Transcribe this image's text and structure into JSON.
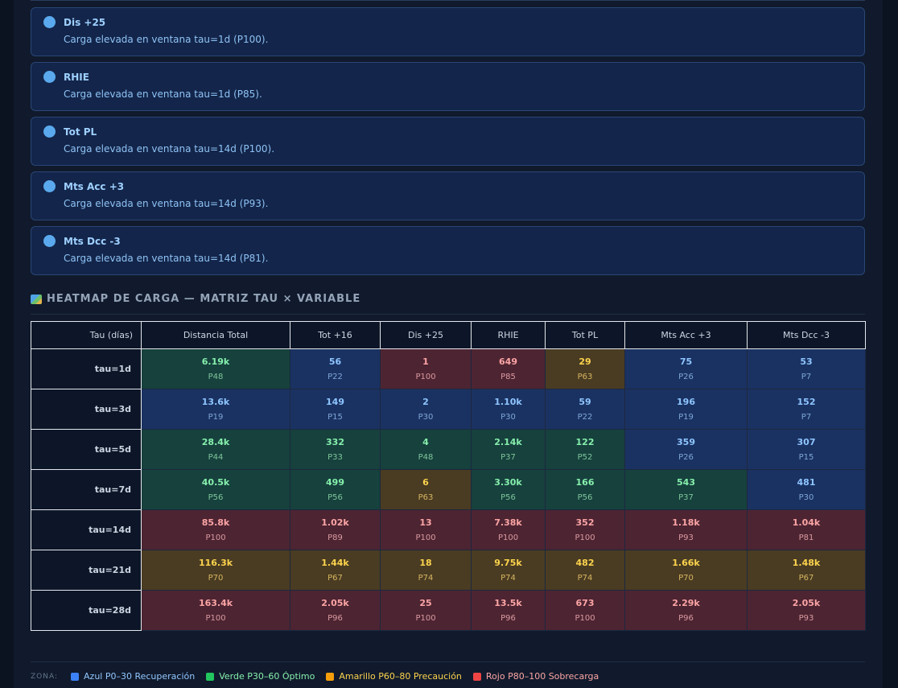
{
  "alerts": [
    {
      "title": "Dis +25",
      "message": "Carga elevada en ventana tau=1d (P100)."
    },
    {
      "title": "RHIE",
      "message": "Carga elevada en ventana tau=1d (P85)."
    },
    {
      "title": "Tot PL",
      "message": "Carga elevada en ventana tau=14d (P100)."
    },
    {
      "title": "Mts Acc +3",
      "message": "Carga elevada en ventana tau=14d (P93)."
    },
    {
      "title": "Mts Dcc -3",
      "message": "Carga elevada en ventana tau=14d (P81)."
    }
  ],
  "heatmap": {
    "title": "HEATMAP DE CARGA — MATRIZ TAU × VARIABLE",
    "icon": "map-icon",
    "corner_header": "Tau (días)",
    "columns": [
      "Distancia Total",
      "Tot +16",
      "Dis +25",
      "RHIE",
      "Tot PL",
      "Mts Acc +3",
      "Mts Dcc -3"
    ],
    "rows": [
      {
        "label": "tau=1d",
        "cells": [
          {
            "value": "6.19k",
            "pct": "P48",
            "zone": "green"
          },
          {
            "value": "56",
            "pct": "P22",
            "zone": "blue"
          },
          {
            "value": "1",
            "pct": "P100",
            "zone": "red"
          },
          {
            "value": "649",
            "pct": "P85",
            "zone": "red"
          },
          {
            "value": "29",
            "pct": "P63",
            "zone": "amber"
          },
          {
            "value": "75",
            "pct": "P26",
            "zone": "blue"
          },
          {
            "value": "53",
            "pct": "P7",
            "zone": "blue"
          }
        ]
      },
      {
        "label": "tau=3d",
        "cells": [
          {
            "value": "13.6k",
            "pct": "P19",
            "zone": "blue"
          },
          {
            "value": "149",
            "pct": "P15",
            "zone": "blue"
          },
          {
            "value": "2",
            "pct": "P30",
            "zone": "blue"
          },
          {
            "value": "1.10k",
            "pct": "P30",
            "zone": "blue"
          },
          {
            "value": "59",
            "pct": "P22",
            "zone": "blue"
          },
          {
            "value": "196",
            "pct": "P19",
            "zone": "blue"
          },
          {
            "value": "152",
            "pct": "P7",
            "zone": "blue"
          }
        ]
      },
      {
        "label": "tau=5d",
        "cells": [
          {
            "value": "28.4k",
            "pct": "P44",
            "zone": "green"
          },
          {
            "value": "332",
            "pct": "P33",
            "zone": "green"
          },
          {
            "value": "4",
            "pct": "P48",
            "zone": "green"
          },
          {
            "value": "2.14k",
            "pct": "P37",
            "zone": "green"
          },
          {
            "value": "122",
            "pct": "P52",
            "zone": "green"
          },
          {
            "value": "359",
            "pct": "P26",
            "zone": "blue"
          },
          {
            "value": "307",
            "pct": "P15",
            "zone": "blue"
          }
        ]
      },
      {
        "label": "tau=7d",
        "cells": [
          {
            "value": "40.5k",
            "pct": "P56",
            "zone": "green"
          },
          {
            "value": "499",
            "pct": "P56",
            "zone": "green"
          },
          {
            "value": "6",
            "pct": "P63",
            "zone": "amber"
          },
          {
            "value": "3.30k",
            "pct": "P56",
            "zone": "green"
          },
          {
            "value": "166",
            "pct": "P56",
            "zone": "green"
          },
          {
            "value": "543",
            "pct": "P37",
            "zone": "green"
          },
          {
            "value": "481",
            "pct": "P30",
            "zone": "blue"
          }
        ]
      },
      {
        "label": "tau=14d",
        "cells": [
          {
            "value": "85.8k",
            "pct": "P100",
            "zone": "red"
          },
          {
            "value": "1.02k",
            "pct": "P89",
            "zone": "red"
          },
          {
            "value": "13",
            "pct": "P100",
            "zone": "red"
          },
          {
            "value": "7.38k",
            "pct": "P100",
            "zone": "red"
          },
          {
            "value": "352",
            "pct": "P100",
            "zone": "red"
          },
          {
            "value": "1.18k",
            "pct": "P93",
            "zone": "red"
          },
          {
            "value": "1.04k",
            "pct": "P81",
            "zone": "red"
          }
        ]
      },
      {
        "label": "tau=21d",
        "cells": [
          {
            "value": "116.3k",
            "pct": "P70",
            "zone": "amber"
          },
          {
            "value": "1.44k",
            "pct": "P67",
            "zone": "amber"
          },
          {
            "value": "18",
            "pct": "P74",
            "zone": "amber"
          },
          {
            "value": "9.75k",
            "pct": "P74",
            "zone": "amber"
          },
          {
            "value": "482",
            "pct": "P74",
            "zone": "amber"
          },
          {
            "value": "1.66k",
            "pct": "P70",
            "zone": "amber"
          },
          {
            "value": "1.48k",
            "pct": "P67",
            "zone": "amber"
          }
        ]
      },
      {
        "label": "tau=28d",
        "cells": [
          {
            "value": "163.4k",
            "pct": "P100",
            "zone": "red"
          },
          {
            "value": "2.05k",
            "pct": "P96",
            "zone": "red"
          },
          {
            "value": "25",
            "pct": "P100",
            "zone": "red"
          },
          {
            "value": "13.5k",
            "pct": "P96",
            "zone": "red"
          },
          {
            "value": "673",
            "pct": "P100",
            "zone": "red"
          },
          {
            "value": "2.29k",
            "pct": "P96",
            "zone": "red"
          },
          {
            "value": "2.05k",
            "pct": "P93",
            "zone": "red"
          }
        ]
      }
    ]
  },
  "legend": {
    "label": "ZONA:",
    "items": [
      {
        "text": "Azul P0–30 Recuperación",
        "color": "#3b82f6",
        "text_color": "#93c5fd"
      },
      {
        "text": "Verde P30–60 Óptimo",
        "color": "#22c55e",
        "text_color": "#86efac"
      },
      {
        "text": "Amarillo P60–80 Precaución",
        "color": "#f59e0b",
        "text_color": "#fcd34d"
      },
      {
        "text": "Rojo P80–100 Sobrecarga",
        "color": "#ef4444",
        "text_color": "#fca5a5"
      }
    ]
  }
}
